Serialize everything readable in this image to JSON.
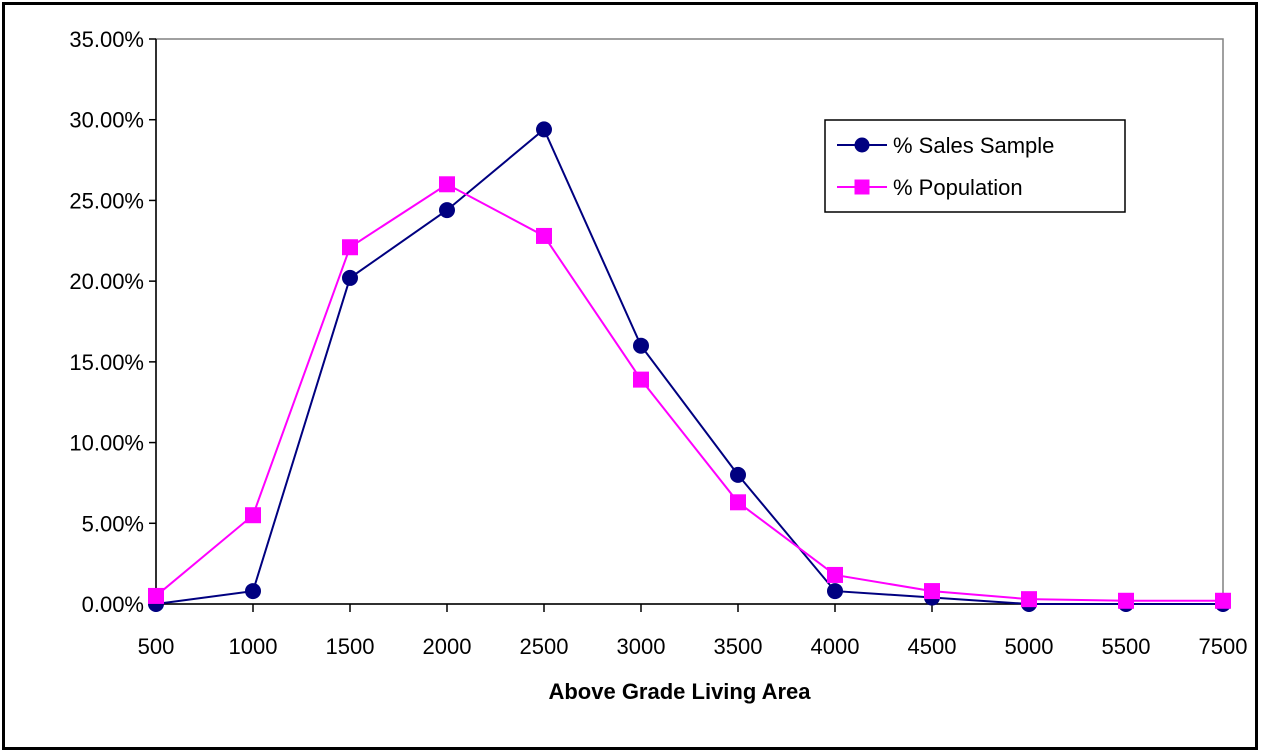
{
  "chart_data": {
    "type": "line",
    "categories": [
      "500",
      "1000",
      "1500",
      "2000",
      "2500",
      "3000",
      "3500",
      "4000",
      "4500",
      "5000",
      "5500",
      "7500"
    ],
    "series": [
      {
        "name": "% Sales Sample",
        "values": [
          0.0,
          0.8,
          20.2,
          24.4,
          29.4,
          16.0,
          8.0,
          0.8,
          0.4,
          0.0,
          0.0,
          0.0
        ],
        "color": "#000080",
        "marker": "circle"
      },
      {
        "name": "% Population",
        "values": [
          0.5,
          5.5,
          22.1,
          26.0,
          22.8,
          13.9,
          6.3,
          1.8,
          0.8,
          0.3,
          0.2,
          0.2
        ],
        "color": "#FF00FF",
        "marker": "square"
      }
    ],
    "y_ticks": [
      "0.00%",
      "5.00%",
      "10.00%",
      "15.00%",
      "20.00%",
      "25.00%",
      "30.00%",
      "35.00%"
    ],
    "ylim": [
      0,
      35
    ],
    "xlabel": "Above Grade Living Area",
    "ylabel": "",
    "title": "",
    "grid": false,
    "legend_position": "top-right"
  }
}
